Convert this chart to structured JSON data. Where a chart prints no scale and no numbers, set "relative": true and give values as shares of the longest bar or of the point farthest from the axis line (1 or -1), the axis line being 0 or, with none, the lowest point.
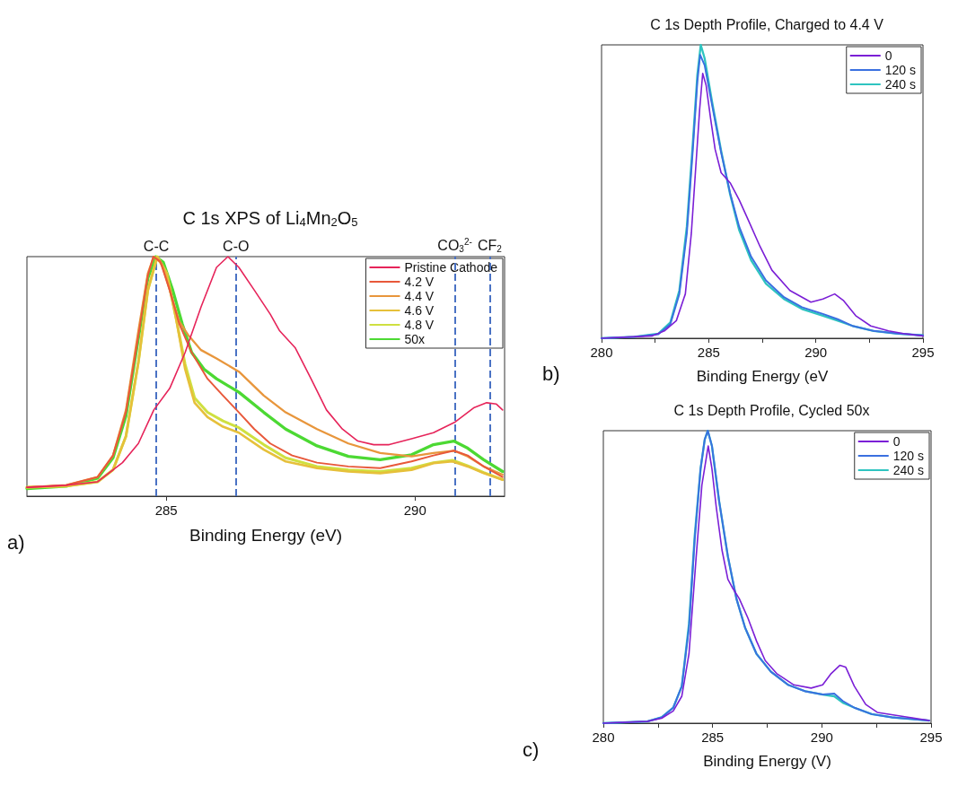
{
  "chart_data": [
    {
      "type": "line",
      "title": "C 1s XPS of Li$_{4}$Mn$_{2}$O$_{5}$",
      "xlabel": "Binding Energy (eV)",
      "annotations": [
        "a)"
      ],
      "relative": true,
      "legend": "top right",
      "xlim": [
        282.2,
        291.8
      ],
      "xticks": [
        285,
        290
      ],
      "ref_lines": [
        {
          "axis": "x",
          "value": 284.8,
          "label": "C-C",
          "color": "#4a72c4",
          "line_style": "dashed"
        },
        {
          "axis": "x",
          "value": 286.4,
          "label": "C-O",
          "color": "#4a72c4",
          "line_style": "dashed"
        },
        {
          "axis": "x",
          "value": 290.8,
          "label": "CO$_{3}$$^{2-}$",
          "color": "#4a72c4",
          "line_style": "dashed"
        },
        {
          "axis": "x",
          "value": 291.5,
          "label": "CF$_{2}$",
          "color": "#4a72c4",
          "line_style": "dashed"
        }
      ],
      "series": [
        {
          "name": "Pristine Cathode",
          "color": "#e6245a",
          "x": [
            282.2,
            282.99,
            283.62,
            284.12,
            284.44,
            284.75,
            285.07,
            285.38,
            285.7,
            286.01,
            286.24,
            286.46,
            286.77,
            287.09,
            287.28,
            287.59,
            287.91,
            288.22,
            288.54,
            288.85,
            289.17,
            289.48,
            289.93,
            290.37,
            290.81,
            291.19,
            291.44,
            291.63,
            291.76
          ],
          "values": [
            0.037,
            0.046,
            0.06,
            0.14,
            0.22,
            0.36,
            0.45,
            0.6,
            0.79,
            0.955,
            1,
            0.955,
            0.86,
            0.76,
            0.69,
            0.62,
            0.49,
            0.36,
            0.28,
            0.23,
            0.215,
            0.215,
            0.24,
            0.265,
            0.31,
            0.37,
            0.39,
            0.385,
            0.36
          ]
        },
        {
          "name": "4.2 V",
          "color": "#e8583a",
          "x": [
            282.2,
            282.99,
            283.62,
            283.93,
            284.19,
            284.44,
            284.63,
            284.74,
            284.88,
            285.07,
            285.26,
            285.51,
            285.83,
            286.14,
            286.46,
            286.77,
            287.09,
            287.53,
            288.03,
            288.66,
            289.3,
            289.93,
            290.37,
            290.78,
            291.06,
            291.38,
            291.76
          ],
          "values": [
            0.037,
            0.046,
            0.08,
            0.17,
            0.35,
            0.67,
            0.92,
            1,
            0.98,
            0.86,
            0.72,
            0.6,
            0.49,
            0.42,
            0.35,
            0.28,
            0.22,
            0.17,
            0.14,
            0.124,
            0.117,
            0.145,
            0.17,
            0.19,
            0.17,
            0.124,
            0.08
          ]
        },
        {
          "name": "4.4 V",
          "color": "#e8963c",
          "x": [
            282.2,
            282.99,
            283.62,
            283.93,
            284.19,
            284.44,
            284.63,
            284.75,
            284.91,
            285.07,
            285.26,
            285.45,
            285.7,
            286.01,
            286.46,
            286.96,
            287.4,
            288.03,
            288.66,
            289.3,
            289.93,
            290.37,
            290.78,
            291.06,
            291.38,
            291.76
          ],
          "values": [
            0.037,
            0.046,
            0.08,
            0.17,
            0.36,
            0.69,
            0.93,
            1,
            0.97,
            0.86,
            0.73,
            0.67,
            0.61,
            0.575,
            0.52,
            0.42,
            0.35,
            0.28,
            0.22,
            0.18,
            0.166,
            0.18,
            0.19,
            0.166,
            0.124,
            0.09
          ]
        },
        {
          "name": "4.6 V",
          "color": "#e6c03a",
          "x": [
            282.2,
            282.99,
            283.62,
            283.93,
            284.19,
            284.44,
            284.63,
            284.82,
            285.01,
            285.2,
            285.38,
            285.57,
            285.83,
            286.14,
            286.46,
            286.96,
            287.4,
            288.03,
            288.66,
            289.3,
            289.93,
            290.37,
            290.75,
            291.06,
            291.38,
            291.76
          ],
          "values": [
            0.037,
            0.042,
            0.06,
            0.11,
            0.25,
            0.56,
            0.86,
            1,
            0.93,
            0.74,
            0.53,
            0.39,
            0.33,
            0.29,
            0.265,
            0.194,
            0.145,
            0.117,
            0.103,
            0.096,
            0.11,
            0.138,
            0.145,
            0.124,
            0.096,
            0.068
          ]
        },
        {
          "name": "4.8 V",
          "color": "#cfe040",
          "x": [
            282.2,
            282.99,
            283.62,
            283.93,
            284.19,
            284.44,
            284.63,
            284.82,
            285.01,
            285.2,
            285.38,
            285.57,
            285.83,
            286.14,
            286.46,
            286.96,
            287.4,
            288.03,
            288.66,
            289.3,
            289.93,
            290.37,
            290.75,
            291.06,
            291.38,
            291.76
          ],
          "values": [
            0.037,
            0.042,
            0.06,
            0.11,
            0.25,
            0.56,
            0.86,
            1,
            0.93,
            0.74,
            0.55,
            0.41,
            0.35,
            0.314,
            0.286,
            0.215,
            0.16,
            0.124,
            0.11,
            0.103,
            0.117,
            0.14,
            0.15,
            0.127,
            0.099,
            0.07
          ]
        },
        {
          "name": "50x",
          "color": "#4cd933",
          "x": [
            282.2,
            282.99,
            283.62,
            283.93,
            284.19,
            284.44,
            284.63,
            284.79,
            284.94,
            285.13,
            285.32,
            285.51,
            285.76,
            286.01,
            286.46,
            286.96,
            287.4,
            288.03,
            288.66,
            289.3,
            289.93,
            290.37,
            290.78,
            291.06,
            291.38,
            291.76
          ],
          "values": [
            0.032,
            0.042,
            0.075,
            0.16,
            0.335,
            0.66,
            0.91,
            1,
            0.976,
            0.86,
            0.72,
            0.6,
            0.53,
            0.49,
            0.434,
            0.35,
            0.28,
            0.21,
            0.166,
            0.152,
            0.173,
            0.215,
            0.23,
            0.2,
            0.152,
            0.103
          ]
        }
      ]
    },
    {
      "type": "line",
      "title": "C 1s Depth Profile, Charged to 4.4 V",
      "xlabel": "Binding Energy (eV",
      "annotations": [
        "b)"
      ],
      "relative": true,
      "legend": "top right",
      "xlim": [
        280,
        295
      ],
      "xticks": [
        280,
        {
          "value": 282.5,
          "label": null
        },
        285,
        {
          "value": 287.5,
          "label": null
        },
        290,
        {
          "value": 292.5,
          "label": null
        },
        295
      ],
      "series": [
        {
          "name": "0",
          "color": "#7b1fd6",
          "x": [
            280,
            282.37,
            282.93,
            283.49,
            283.91,
            284.19,
            284.4,
            284.58,
            284.72,
            284.88,
            285.09,
            285.3,
            285.58,
            286.0,
            286.42,
            286.84,
            287.4,
            287.95,
            288.79,
            289.77,
            290.33,
            290.88,
            291.3,
            291.86,
            292.56,
            293.39,
            294.09,
            295
          ],
          "values": [
            0,
            0.008,
            0.025,
            0.06,
            0.151,
            0.358,
            0.587,
            0.782,
            0.903,
            0.862,
            0.748,
            0.644,
            0.564,
            0.53,
            0.472,
            0.404,
            0.312,
            0.232,
            0.163,
            0.123,
            0.134,
            0.151,
            0.128,
            0.077,
            0.042,
            0.025,
            0.016,
            0.008
          ]
        },
        {
          "name": "120 s",
          "color": "#3a70e0",
          "x": [
            280,
            281.53,
            282.65,
            283.21,
            283.63,
            283.98,
            284.26,
            284.47,
            284.6,
            284.81,
            285.16,
            285.58,
            286.0,
            286.42,
            286.98,
            287.67,
            288.51,
            289.35,
            290.33,
            291.02,
            291.72,
            292.7,
            293.81,
            295
          ],
          "values": [
            0,
            0.005,
            0.014,
            0.048,
            0.151,
            0.358,
            0.644,
            0.874,
            0.966,
            0.931,
            0.794,
            0.633,
            0.495,
            0.381,
            0.278,
            0.197,
            0.14,
            0.106,
            0.083,
            0.065,
            0.042,
            0.025,
            0.016,
            0.01
          ]
        },
        {
          "name": "240 s",
          "color": "#2ec4c0",
          "x": [
            280,
            281.53,
            282.65,
            283.21,
            283.63,
            283.98,
            284.26,
            284.47,
            284.63,
            284.81,
            285.16,
            285.58,
            286.0,
            286.42,
            286.98,
            287.67,
            288.51,
            289.35,
            290.33,
            291.02,
            291.72,
            292.7,
            293.81,
            295
          ],
          "values": [
            0,
            0.005,
            0.016,
            0.054,
            0.163,
            0.381,
            0.667,
            0.897,
            1,
            0.954,
            0.805,
            0.639,
            0.49,
            0.369,
            0.266,
            0.186,
            0.134,
            0.1,
            0.077,
            0.06,
            0.042,
            0.025,
            0.016,
            0.01
          ]
        }
      ]
    },
    {
      "type": "line",
      "title": "C 1s Depth Profile, Cycled 50x",
      "xlabel": "Binding Energy (V)",
      "annotations": [
        "c)"
      ],
      "relative": true,
      "legend": "top right",
      "xlim": [
        280,
        295
      ],
      "xticks": [
        280,
        {
          "value": 282.5,
          "label": null
        },
        285,
        {
          "value": 287.5,
          "label": null
        },
        290,
        {
          "value": 292.5,
          "label": null
        },
        295
      ],
      "series": [
        {
          "name": "0",
          "color": "#7b1fd6",
          "x": [
            280,
            282.01,
            282.67,
            283.2,
            283.59,
            283.92,
            284.25,
            284.51,
            284.8,
            284.97,
            285.17,
            285.43,
            285.7,
            285.9,
            286.22,
            286.62,
            287.01,
            287.41,
            287.93,
            288.72,
            289.51,
            290.04,
            290.43,
            290.83,
            291.09,
            291.49,
            292.01,
            292.54,
            293.46,
            293.99,
            294.91
          ],
          "values": [
            0,
            0.006,
            0.017,
            0.042,
            0.092,
            0.237,
            0.57,
            0.814,
            0.948,
            0.87,
            0.737,
            0.592,
            0.492,
            0.464,
            0.426,
            0.359,
            0.281,
            0.214,
            0.17,
            0.131,
            0.12,
            0.131,
            0.17,
            0.198,
            0.192,
            0.126,
            0.064,
            0.037,
            0.026,
            0.02,
            0.009
          ]
        },
        {
          "name": "120 s",
          "color": "#3a70e0",
          "x": [
            280,
            282.01,
            282.67,
            283.2,
            283.59,
            283.92,
            284.18,
            284.45,
            284.64,
            284.78,
            284.97,
            285.3,
            285.7,
            286.09,
            286.49,
            287.01,
            287.67,
            288.46,
            289.25,
            290.04,
            290.57,
            290.96,
            291.49,
            292.28,
            293.2,
            294.91
          ],
          "values": [
            0,
            0.006,
            0.02,
            0.053,
            0.126,
            0.326,
            0.626,
            0.87,
            0.97,
            1,
            0.948,
            0.759,
            0.57,
            0.426,
            0.326,
            0.237,
            0.176,
            0.131,
            0.109,
            0.098,
            0.101,
            0.076,
            0.053,
            0.031,
            0.02,
            0.009
          ]
        },
        {
          "name": "240 s",
          "color": "#2ec4c0",
          "x": [
            280,
            282.01,
            282.67,
            283.2,
            283.59,
            283.92,
            284.18,
            284.45,
            284.64,
            284.78,
            284.97,
            285.3,
            285.7,
            286.09,
            286.49,
            287.01,
            287.67,
            288.46,
            289.25,
            290.04,
            290.57,
            290.96,
            291.49,
            292.28,
            293.2,
            294.91
          ],
          "values": [
            0,
            0.006,
            0.02,
            0.053,
            0.126,
            0.34,
            0.64,
            0.87,
            0.97,
            1,
            0.948,
            0.759,
            0.57,
            0.426,
            0.326,
            0.237,
            0.176,
            0.131,
            0.109,
            0.098,
            0.092,
            0.07,
            0.053,
            0.031,
            0.02,
            0.009
          ]
        }
      ]
    }
  ]
}
